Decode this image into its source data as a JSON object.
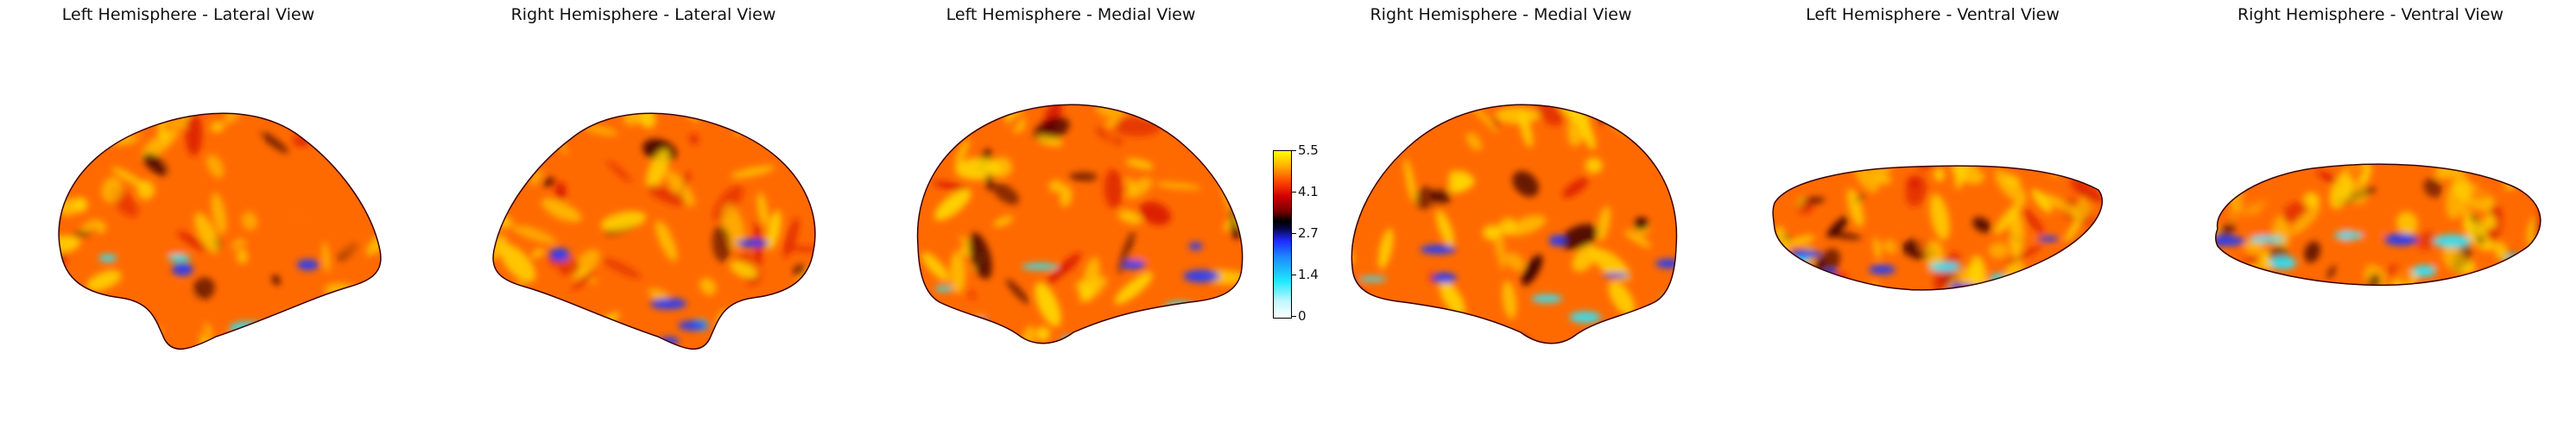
{
  "panels": [
    {
      "title": "Left Hemisphere - Lateral View"
    },
    {
      "title": "Right Hemisphere - Lateral View"
    },
    {
      "title": "Left Hemisphere - Medial View"
    },
    {
      "title": "Right Hemisphere - Medial View"
    },
    {
      "title": "Left Hemisphere - Ventral View"
    },
    {
      "title": "Right Hemisphere - Ventral View"
    }
  ],
  "colorbar": {
    "ticks": [
      "5.5",
      "4.1",
      "2.7",
      "1.4",
      "0"
    ]
  },
  "colors": {
    "hot": "#ff6a00",
    "hot_light": "#ffd400",
    "dark": "#3a0000",
    "cold": "#1f3cff",
    "cold_light": "#2ee6ff"
  }
}
